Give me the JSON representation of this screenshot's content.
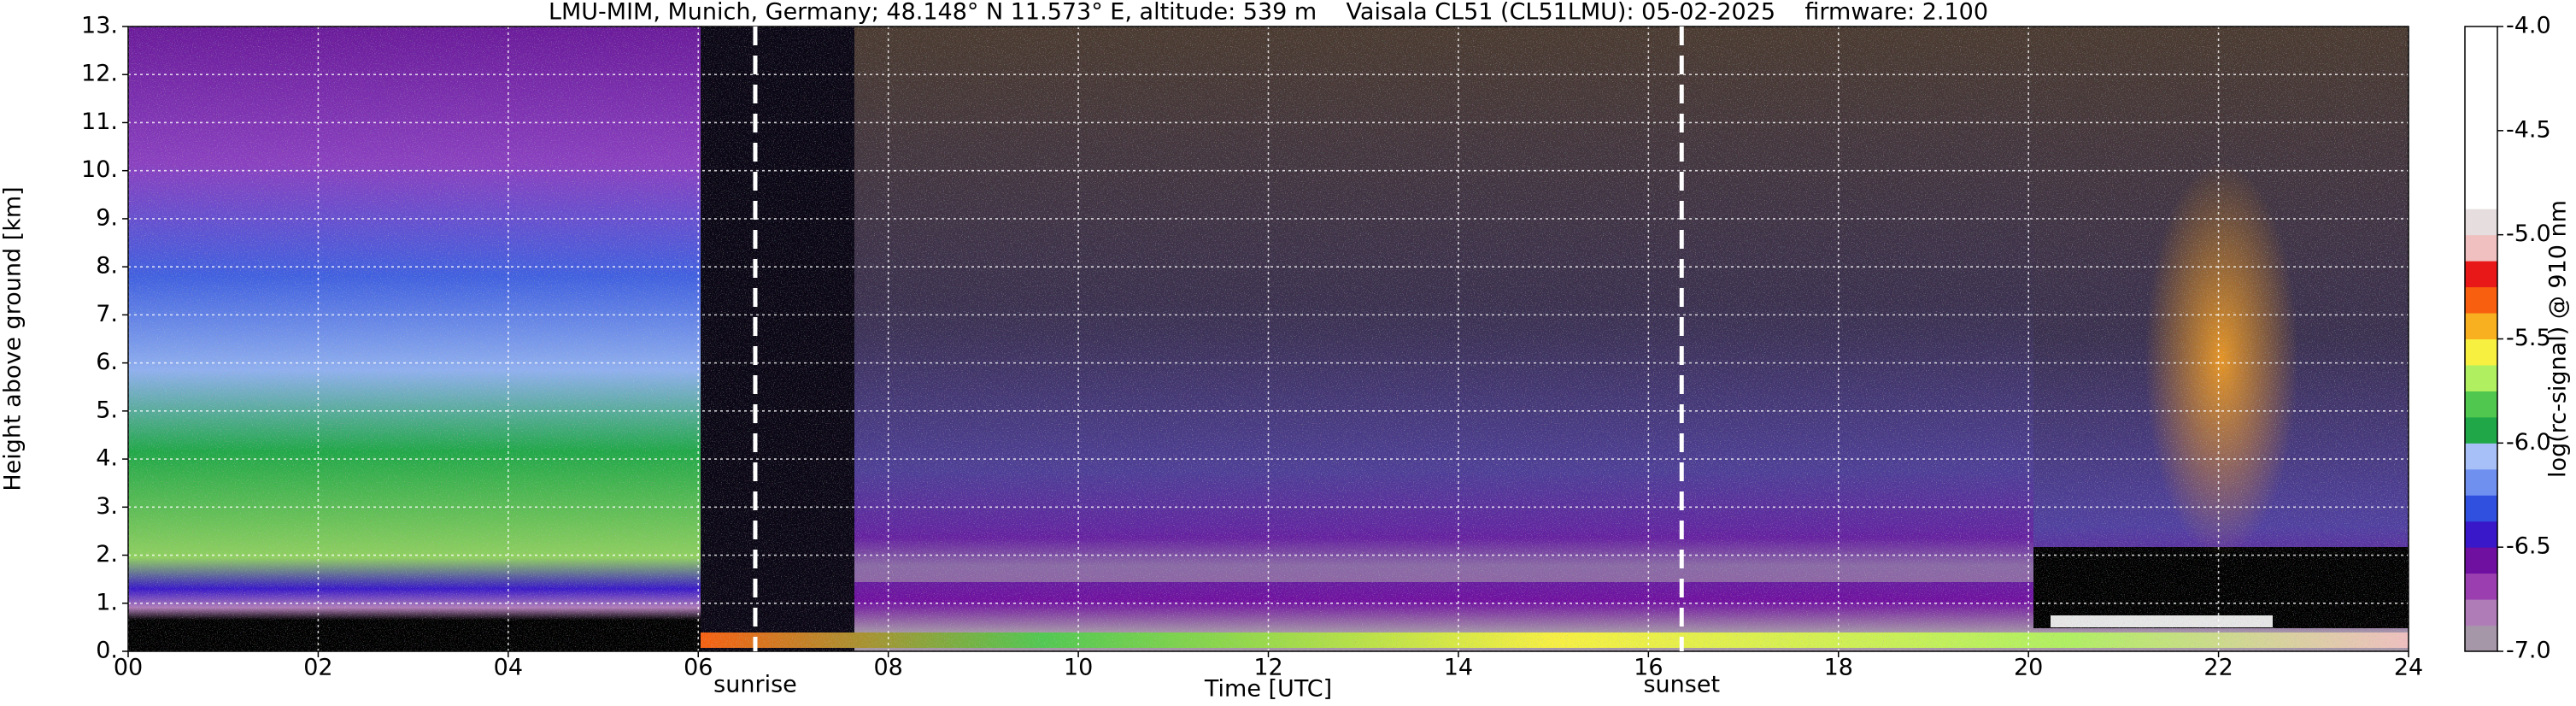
{
  "chart_data": {
    "type": "heatmap",
    "title": "LMU-MIM, Munich, Germany; 48.148° N 11.573° E, altitude: 539 m    Vaisala CL51 (CL51LMU): 05-02-2025    firmware: 2.100",
    "xlabel": "Time [UTC]",
    "ylabel": "Height above ground [km]",
    "xlim": [
      0,
      24
    ],
    "xticks": [
      {
        "value": 0,
        "label": "00"
      },
      {
        "value": 2,
        "label": "02"
      },
      {
        "value": 4,
        "label": "04"
      },
      {
        "value": 6,
        "label": "06"
      },
      {
        "value": 8,
        "label": "08"
      },
      10,
      12,
      14,
      16,
      18,
      20,
      22,
      24
    ],
    "ylim": [
      0,
      13
    ],
    "yticks": [
      {
        "value": 0,
        "label": "0."
      },
      {
        "value": 1,
        "label": "1."
      },
      {
        "value": 2,
        "label": "2."
      },
      {
        "value": 3,
        "label": "3."
      },
      {
        "value": 4,
        "label": "4."
      },
      {
        "value": 5,
        "label": "5."
      },
      {
        "value": 6,
        "label": "6."
      },
      {
        "value": 7,
        "label": "7."
      },
      {
        "value": 8,
        "label": "8."
      },
      {
        "value": 9,
        "label": "9."
      },
      {
        "value": 10,
        "label": "10."
      },
      {
        "value": 11,
        "label": "11."
      },
      {
        "value": 12,
        "label": "12."
      },
      {
        "value": 13,
        "label": "13."
      }
    ],
    "grid": true,
    "vlines": [
      {
        "x": 6.6,
        "label": "sunrise"
      },
      {
        "x": 16.35,
        "label": "sunset"
      }
    ],
    "colorbar": {
      "label": "log(rc-signal) @ 910 nm",
      "lim": [
        -7,
        -4
      ],
      "ticks": [
        {
          "value": -4,
          "label": "-4.0"
        },
        {
          "value": -4.5,
          "label": "-4.5"
        },
        {
          "value": -5,
          "label": "-5.0"
        },
        {
          "value": -5.5,
          "label": "-5.5"
        },
        {
          "value": -6,
          "label": "-6.0"
        },
        {
          "value": -6.5,
          "label": "-6.5"
        },
        {
          "value": -7,
          "label": "-7.0"
        }
      ],
      "colors": [
        "#a596a8",
        "#b07cb8",
        "#9b3fb0",
        "#7010a0",
        "#3818c8",
        "#3050e0",
        "#7090f0",
        "#a8c0f8",
        "#20a848",
        "#50c850",
        "#b0f060",
        "#f8f040",
        "#f8b020",
        "#f86010",
        "#e81818",
        "#f0c0c0",
        "#e6dede",
        "#ffffff",
        "#ffffff",
        "#ffffff",
        "#ffffff",
        "#ffffff",
        "#ffffff",
        "#ffffff"
      ]
    }
  }
}
